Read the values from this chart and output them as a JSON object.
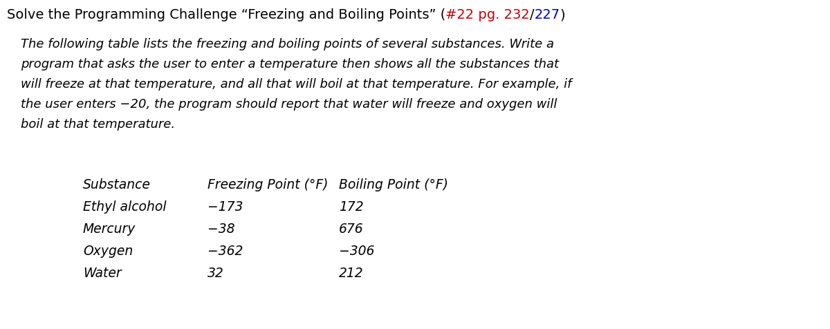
{
  "background_color": "#ffffff",
  "title_parts": [
    {
      "text": "Solve the Programming Challenge “Freezing and Boiling Points” (",
      "color": "#000000"
    },
    {
      "text": "#22 pg. 232",
      "color": "#cc0000"
    },
    {
      "text": "/",
      "color": "#000000"
    },
    {
      "text": "227",
      "color": "#0000cc"
    },
    {
      "text": ")",
      "color": "#000000"
    }
  ],
  "italic_lines": [
    "The following table lists the freezing and boiling points of several substances. Write a",
    "program that asks the user to enter a temperature then shows all the substances that",
    "will freeze at that temperature, and all that will boil at that temperature. For example, if",
    "the user enters −20, the program should report that water will freeze and oxygen will",
    "boil at that temperature."
  ],
  "table_headers": [
    "Substance",
    "Freezing Point (°F)",
    "Boiling Point (°F)"
  ],
  "table_data": [
    [
      "Ethyl alcohol",
      "−173",
      "172"
    ],
    [
      "Mercury",
      "−38",
      "676"
    ],
    [
      "Oxygen",
      "−362",
      "−306"
    ],
    [
      "Water",
      "32",
      "212"
    ]
  ],
  "font_size_title": 14.0,
  "font_size_italic": 13.0,
  "font_size_table": 13.5,
  "red_color": "#cc0000",
  "blue_color": "#0000cc"
}
